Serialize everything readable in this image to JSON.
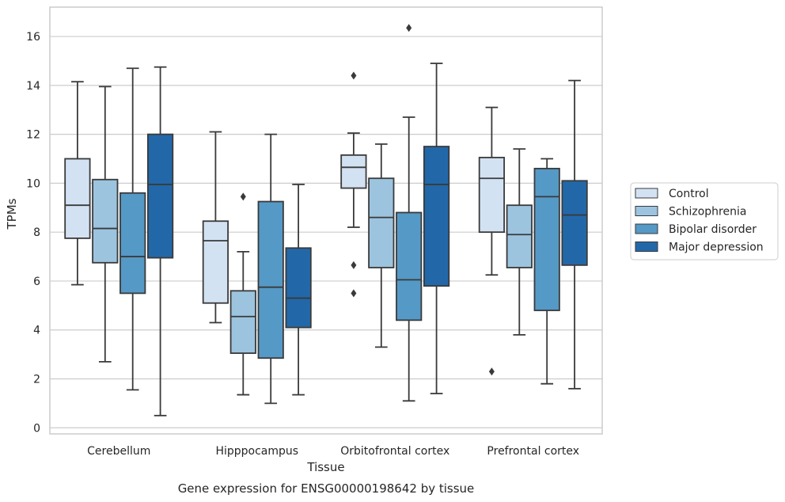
{
  "chart_data": {
    "type": "box",
    "xlabel": "Tissue",
    "ylabel": "TPMs",
    "caption": "Gene expression for ENSG00000198642 by tissue",
    "ylim": [
      -0.25,
      17.2
    ],
    "yticks": [
      0,
      2,
      4,
      6,
      8,
      10,
      12,
      14,
      16
    ],
    "grid": true,
    "legend_position": "right",
    "categories": [
      "Cerebellum",
      "Hipppocampus",
      "Orbitofrontal cortex",
      "Prefrontal cortex"
    ],
    "series": [
      {
        "name": "Control",
        "color": "#d3e2f3",
        "boxes": [
          {
            "whisker_low": 5.85,
            "q1": 7.75,
            "median": 9.1,
            "q3": 11.0,
            "whisker_high": 14.15,
            "outliers": []
          },
          {
            "whisker_low": 4.3,
            "q1": 5.1,
            "median": 7.65,
            "q3": 8.45,
            "whisker_high": 12.1,
            "outliers": []
          },
          {
            "whisker_low": 8.2,
            "q1": 9.8,
            "median": 10.65,
            "q3": 11.15,
            "whisker_high": 12.05,
            "outliers": [
              14.4,
              6.65,
              5.5
            ]
          },
          {
            "whisker_low": 6.25,
            "q1": 8.0,
            "median": 10.2,
            "q3": 11.05,
            "whisker_high": 13.1,
            "outliers": [
              2.3
            ]
          }
        ]
      },
      {
        "name": "Schizophrenia",
        "color": "#9cc4df",
        "boxes": [
          {
            "whisker_low": 2.7,
            "q1": 6.75,
            "median": 8.15,
            "q3": 10.15,
            "whisker_high": 13.95,
            "outliers": []
          },
          {
            "whisker_low": 1.35,
            "q1": 3.05,
            "median": 4.55,
            "q3": 5.6,
            "whisker_high": 7.2,
            "outliers": [
              9.45
            ]
          },
          {
            "whisker_low": 3.3,
            "q1": 6.55,
            "median": 8.6,
            "q3": 10.2,
            "whisker_high": 11.6,
            "outliers": []
          },
          {
            "whisker_low": 3.8,
            "q1": 6.55,
            "median": 7.9,
            "q3": 9.1,
            "whisker_high": 11.4,
            "outliers": []
          }
        ]
      },
      {
        "name": "Bipolar disorder",
        "color": "#5599c6",
        "boxes": [
          {
            "whisker_low": 1.55,
            "q1": 5.5,
            "median": 7.0,
            "q3": 9.6,
            "whisker_high": 14.7,
            "outliers": []
          },
          {
            "whisker_low": 1.0,
            "q1": 2.85,
            "median": 5.75,
            "q3": 9.25,
            "whisker_high": 12.0,
            "outliers": []
          },
          {
            "whisker_low": 1.1,
            "q1": 4.4,
            "median": 6.05,
            "q3": 8.8,
            "whisker_high": 12.7,
            "outliers": [
              16.35
            ]
          },
          {
            "whisker_low": 1.8,
            "q1": 4.8,
            "median": 9.45,
            "q3": 10.6,
            "whisker_high": 11.0,
            "outliers": []
          }
        ]
      },
      {
        "name": "Major depression",
        "color": "#2268a9",
        "boxes": [
          {
            "whisker_low": 0.5,
            "q1": 6.95,
            "median": 9.95,
            "q3": 12.0,
            "whisker_high": 14.75,
            "outliers": []
          },
          {
            "whisker_low": 1.35,
            "q1": 4.1,
            "median": 5.3,
            "q3": 7.35,
            "whisker_high": 9.95,
            "outliers": []
          },
          {
            "whisker_low": 1.4,
            "q1": 5.8,
            "median": 9.95,
            "q3": 11.5,
            "whisker_high": 14.9,
            "outliers": []
          },
          {
            "whisker_low": 1.6,
            "q1": 6.65,
            "median": 8.7,
            "q3": 10.1,
            "whisker_high": 14.2,
            "outliers": []
          }
        ]
      }
    ]
  }
}
